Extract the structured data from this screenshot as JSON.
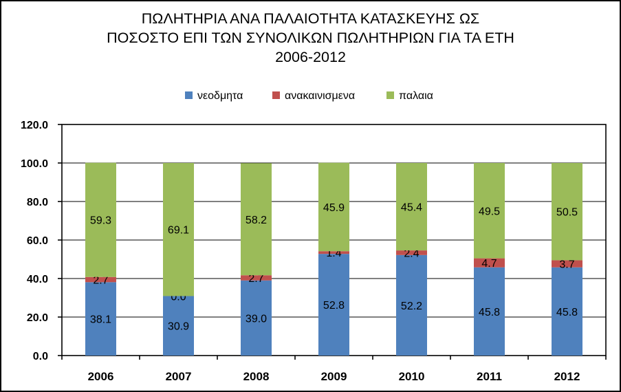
{
  "chart_data": {
    "type": "bar",
    "stacked": true,
    "title_lines": [
      "ΠΩΛΗΤΗΡΙΑ ΑΝΑ ΠΑΛΑΙΟΤΗΤΑ ΚΑΤΑΣΚΕΥΗΣ ΩΣ",
      "ΠΟΣΟΣΤΟ ΕΠΙ ΤΩΝ ΣΥΝΟΛΙΚΩΝ ΠΩΛΗΤΗΡΙΩΝ ΓΙΑ ΤΑ ΕΤΗ",
      "2006-2012"
    ],
    "categories": [
      "2006",
      "2007",
      "2008",
      "2009",
      "2010",
      "2011",
      "2012"
    ],
    "series": [
      {
        "name": "νεοδμητα",
        "color": "#4F81BD",
        "values": [
          38.1,
          30.9,
          39.0,
          52.8,
          52.2,
          45.8,
          45.8
        ],
        "labels": [
          "38.1",
          "30.9",
          "39.0",
          "52.8",
          "52.2",
          "45.8",
          "45.8"
        ]
      },
      {
        "name": "ανακαινισμενα",
        "color": "#C0504D",
        "values": [
          2.7,
          0.0,
          2.7,
          1.4,
          2.4,
          4.7,
          3.7
        ],
        "labels": [
          "2.7",
          "0.0",
          "2.7",
          "1.4",
          "2.4",
          "4.7",
          "3.7"
        ]
      },
      {
        "name": "παλαια",
        "color": "#9BBB59",
        "values": [
          59.3,
          69.1,
          58.2,
          45.9,
          45.4,
          49.5,
          50.5
        ],
        "labels": [
          "59.3",
          "69.1",
          "58.2",
          "45.9",
          "45.4",
          "49.5",
          "50.5"
        ]
      }
    ],
    "y_ticks": [
      "0.0",
      "20.0",
      "40.0",
      "60.0",
      "80.0",
      "100.0",
      "120.0"
    ],
    "ylim": [
      0,
      120
    ],
    "y_step": 20,
    "xlabel": "",
    "ylabel": "",
    "grid": true,
    "legend_position": "top"
  }
}
